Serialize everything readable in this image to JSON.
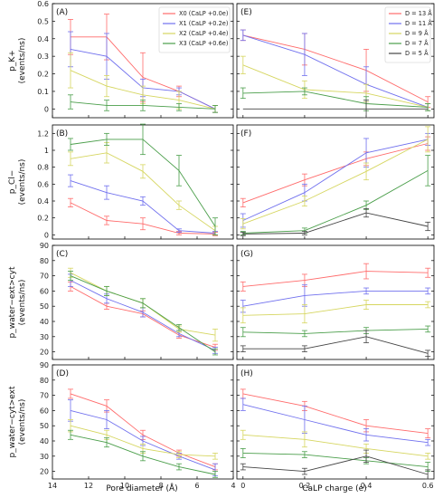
{
  "figure": {
    "xlabel_left": "Pore diameter (Å)",
    "xlabel_right": "CaLP charge (e)"
  },
  "legends": {
    "left": [
      "X0 (CaLP +0.0e)",
      "X1 (CaLP +0.2e)",
      "X2 (CaLP +0.4e)",
      "X3 (CaLP +0.6e)"
    ],
    "right": [
      "D = 13 Å",
      "D = 11 Å",
      "D = 9 Å",
      "D = 7 Å",
      "D = 5 Å"
    ]
  },
  "chart_data": {
    "type": "line",
    "colors": [
      "#ff6b6b",
      "#7070ee",
      "#d6d660",
      "#4a9e4a",
      "#444444"
    ],
    "x_left": [
      13,
      11,
      9,
      7,
      5
    ],
    "x_right": [
      0.0,
      0.2,
      0.4,
      0.6
    ],
    "xlim_left": [
      14,
      4
    ],
    "xlim_right": [
      -0.02,
      0.62
    ],
    "xticks_left": [
      14,
      12,
      10,
      8,
      6,
      4
    ],
    "xticks_right": [
      0.0,
      0.2,
      0.4,
      0.6
    ],
    "rows": [
      {
        "ylabel": [
          "p_K+",
          "(events/ns)"
        ],
        "ylim": [
          -0.05,
          0.6
        ],
        "yticks": [
          0.0,
          0.1,
          0.2,
          0.3,
          0.4,
          0.5,
          0.6
        ],
        "panels": [
          {
            "label": "(A)",
            "side": "left",
            "series": [
              {
                "values": [
                  0.41,
                  0.41,
                  0.18,
                  0.1,
                  0.0
                ],
                "errors": [
                  0.1,
                  0.13,
                  0.14,
                  0.03,
                  0.02
                ]
              },
              {
                "values": [
                  0.34,
                  0.3,
                  0.12,
                  0.1,
                  0.0
                ],
                "errors": [
                  0.1,
                  0.13,
                  0.05,
                  0.02,
                  0.02
                ]
              },
              {
                "values": [
                  0.22,
                  0.13,
                  0.08,
                  0.05,
                  0.0
                ],
                "errors": [
                  0.1,
                  0.06,
                  0.05,
                  0.05,
                  0.02
                ]
              },
              {
                "values": [
                  0.04,
                  0.02,
                  0.02,
                  0.01,
                  0.0
                ],
                "errors": [
                  0.04,
                  0.03,
                  0.03,
                  0.02,
                  0.02
                ]
              }
            ]
          },
          {
            "label": "(E)",
            "side": "right",
            "series": [
              {
                "values": [
                  0.42,
                  0.34,
                  0.22,
                  0.04
                ],
                "errors": [
                  0.03,
                  0.09,
                  0.12,
                  0.03
                ]
              },
              {
                "values": [
                  0.42,
                  0.31,
                  0.14,
                  0.01
                ],
                "errors": [
                  0.03,
                  0.12,
                  0.1,
                  0.02
                ]
              },
              {
                "values": [
                  0.25,
                  0.11,
                  0.09,
                  0.01
                ],
                "errors": [
                  0.05,
                  0.05,
                  0.05,
                  0.02
                ]
              },
              {
                "values": [
                  0.09,
                  0.1,
                  0.03,
                  0.01
                ],
                "errors": [
                  0.03,
                  0.02,
                  0.04,
                  0.02
                ]
              },
              {
                "values": [
                  0.0,
                  0.0,
                  0.0,
                  0.0
                ],
                "errors": [
                  0.0,
                  0.0,
                  0.05,
                  0.0
                ]
              }
            ]
          }
        ]
      },
      {
        "ylabel": [
          "p_Cl−",
          "(events/ns)"
        ],
        "ylim": [
          -0.05,
          1.3
        ],
        "yticks": [
          0.0,
          0.2,
          0.4,
          0.6,
          0.8,
          1.0,
          1.2
        ],
        "panels": [
          {
            "label": "(B)",
            "side": "left",
            "series": [
              {
                "values": [
                  0.38,
                  0.17,
                  0.13,
                  0.02,
                  0.01
                ],
                "errors": [
                  0.05,
                  0.05,
                  0.07,
                  0.02,
                  0.02
                ]
              },
              {
                "values": [
                  0.64,
                  0.5,
                  0.4,
                  0.05,
                  0.02
                ],
                "errors": [
                  0.07,
                  0.08,
                  0.05,
                  0.02,
                  0.02
                ]
              },
              {
                "values": [
                  0.9,
                  0.97,
                  0.75,
                  0.35,
                  0.05
                ],
                "errors": [
                  0.08,
                  0.12,
                  0.08,
                  0.05,
                  0.05
                ]
              },
              {
                "values": [
                  1.07,
                  1.13,
                  1.13,
                  0.76,
                  0.1
                ],
                "errors": [
                  0.07,
                  0.07,
                  0.18,
                  0.18,
                  0.1
                ]
              }
            ]
          },
          {
            "label": "(F)",
            "side": "right",
            "series": [
              {
                "values": [
                  0.38,
                  0.65,
                  0.9,
                  1.08
                ],
                "errors": [
                  0.05,
                  0.07,
                  0.08,
                  0.08
                ]
              },
              {
                "values": [
                  0.17,
                  0.5,
                  0.97,
                  1.13
                ],
                "errors": [
                  0.08,
                  0.1,
                  0.17,
                  0.07
                ]
              },
              {
                "values": [
                  0.13,
                  0.4,
                  0.75,
                  1.13
                ],
                "errors": [
                  0.06,
                  0.06,
                  0.1,
                  0.15
                ]
              },
              {
                "values": [
                  0.02,
                  0.05,
                  0.35,
                  0.76
                ],
                "errors": [
                  0.02,
                  0.03,
                  0.05,
                  0.18
                ]
              },
              {
                "values": [
                  0.01,
                  0.02,
                  0.26,
                  0.1
                ],
                "errors": [
                  0.02,
                  0.02,
                  0.05,
                  0.05
                ]
              }
            ]
          }
        ]
      },
      {
        "ylabel": [
          "p_water−ext>cyt",
          "(events/ns)"
        ],
        "ylim": [
          15,
          90
        ],
        "yticks": [
          20,
          30,
          40,
          50,
          60,
          70,
          80,
          90
        ],
        "panels": [
          {
            "label": "(C)",
            "side": "left",
            "series": [
              {
                "values": [
                  63,
                  50,
                  45,
                  31,
                  23
                ],
                "errors": [
                  3,
                  2,
                  2,
                  2,
                  2
                ]
              },
              {
                "values": [
                  67,
                  55,
                  46,
                  32,
                  21
                ],
                "errors": [
                  4,
                  3,
                  3,
                  2,
                  2
                ]
              },
              {
                "values": [
                  72,
                  60,
                  52,
                  35,
                  31
                ],
                "errors": [
                  3,
                  3,
                  3,
                  2,
                  4
                ]
              },
              {
                "values": [
                  70,
                  60,
                  52,
                  36,
                  20
                ],
                "errors": [
                  3,
                  3,
                  3,
                  2,
                  2
                ]
              }
            ]
          },
          {
            "label": "(G)",
            "side": "right",
            "series": [
              {
                "values": [
                  63,
                  67,
                  73,
                  72
                ],
                "errors": [
                  3,
                  4,
                  5,
                  3
                ]
              },
              {
                "values": [
                  50,
                  57,
                  60,
                  60
                ],
                "errors": [
                  4,
                  7,
                  2,
                  2
                ]
              },
              {
                "values": [
                  44,
                  45,
                  51,
                  51
                ],
                "errors": [
                  5,
                  6,
                  3,
                  2
                ]
              },
              {
                "values": [
                  33,
                  32,
                  34,
                  35
                ],
                "errors": [
                  3,
                  2,
                  2,
                  2
                ]
              },
              {
                "values": [
                  22,
                  22,
                  30,
                  19
                ],
                "errors": [
                  2,
                  2,
                  4,
                  2
                ]
              }
            ]
          }
        ]
      },
      {
        "ylabel": [
          "p_water−cyt>ext",
          "(events/ns)"
        ],
        "ylim": [
          15,
          90
        ],
        "yticks": [
          20,
          30,
          40,
          50,
          60,
          70,
          80,
          90
        ],
        "panels": [
          {
            "label": "(D)",
            "side": "left",
            "series": [
              {
                "values": [
                  71,
                  63,
                  44,
                  32,
                  23
                ],
                "errors": [
                  3,
                  4,
                  3,
                  2,
                  2
                ]
              },
              {
                "values": [
                  60,
                  54,
                  40,
                  30,
                  21
                ],
                "errors": [
                  7,
                  6,
                  3,
                  2,
                  4
                ]
              },
              {
                "values": [
                  50,
                  44,
                  35,
                  31,
                  30
                ],
                "errors": [
                  4,
                  3,
                  3,
                  2,
                  2
                ]
              },
              {
                "values": [
                  44,
                  39,
                  30,
                  23,
                  18
                ],
                "errors": [
                  3,
                  3,
                  3,
                  2,
                  2
                ]
              }
            ]
          },
          {
            "label": "(H)",
            "side": "right",
            "series": [
              {
                "values": [
                  71,
                  63,
                  50,
                  45
                ],
                "errors": [
                  3,
                  3,
                  4,
                  3
                ]
              },
              {
                "values": [
                  64,
                  54,
                  44,
                  39
                ],
                "errors": [
                  4,
                  9,
                  4,
                  2
                ]
              },
              {
                "values": [
                  44,
                  41,
                  35,
                  30
                ],
                "errors": [
                  3,
                  5,
                  3,
                  2
                ]
              },
              {
                "values": [
                  32,
                  31,
                  27,
                  23
                ],
                "errors": [
                  3,
                  2,
                  2,
                  3
                ]
              },
              {
                "values": [
                  23,
                  20,
                  30,
                  18
                ],
                "errors": [
                  2,
                  2,
                  4,
                  3
                ]
              }
            ]
          }
        ]
      }
    ]
  }
}
